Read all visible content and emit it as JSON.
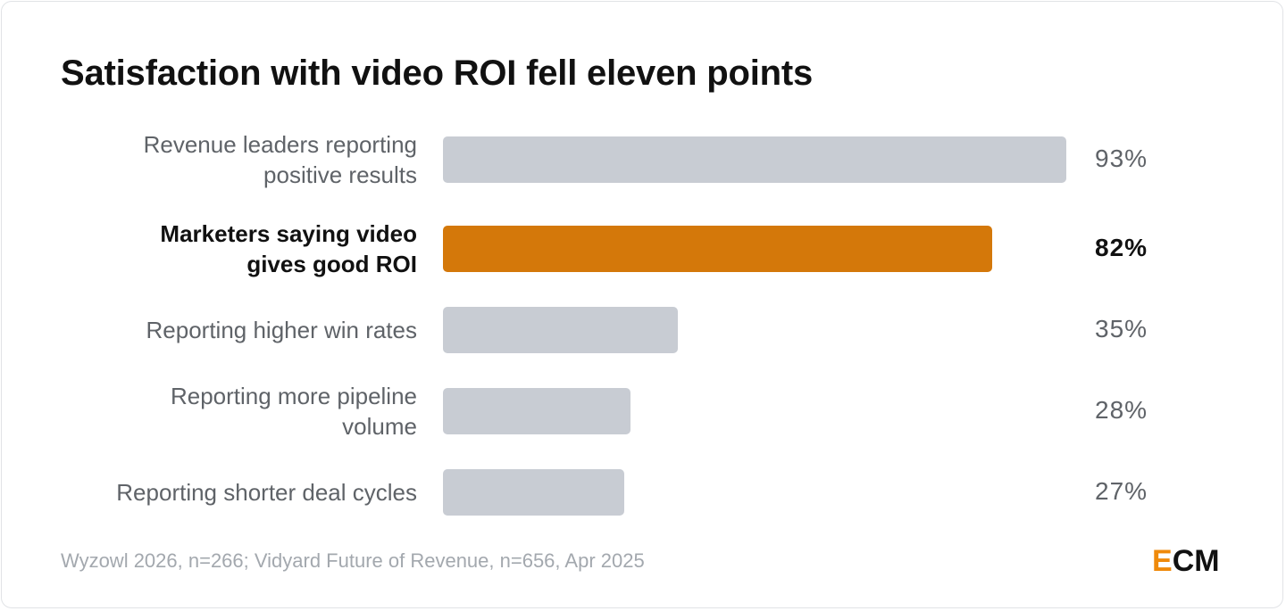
{
  "title": "Satisfaction with video ROI fell eleven points",
  "source": "Wyzowl 2026, n=266; Vidyard Future of Revenue, n=656, Apr 2025",
  "logo": {
    "first": "E",
    "rest": "CM"
  },
  "colors": {
    "highlight": "#d4780a",
    "bar": "#c8ccd3",
    "logo_accent": "#ef8a0b"
  },
  "chart_data": {
    "type": "bar",
    "orientation": "horizontal",
    "title": "Satisfaction with video ROI fell eleven points",
    "categories": [
      "Revenue leaders reporting positive results",
      "Marketers saying video gives good ROI",
      "Reporting higher win rates",
      "Reporting more pipeline volume",
      "Reporting shorter deal cycles"
    ],
    "label_lines": [
      [
        "Revenue leaders reporting",
        "positive results"
      ],
      [
        "Marketers saying video",
        "gives good ROI"
      ],
      [
        "Reporting higher win rates"
      ],
      [
        "Reporting more pipeline",
        "volume"
      ],
      [
        "Reporting shorter deal cycles"
      ]
    ],
    "values": [
      93,
      82,
      35,
      28,
      27
    ],
    "value_labels": [
      "93%",
      "82%",
      "35%",
      "28%",
      "27%"
    ],
    "highlight_index": 1,
    "xlim": [
      0,
      100
    ],
    "grid": false,
    "legend": "none"
  }
}
